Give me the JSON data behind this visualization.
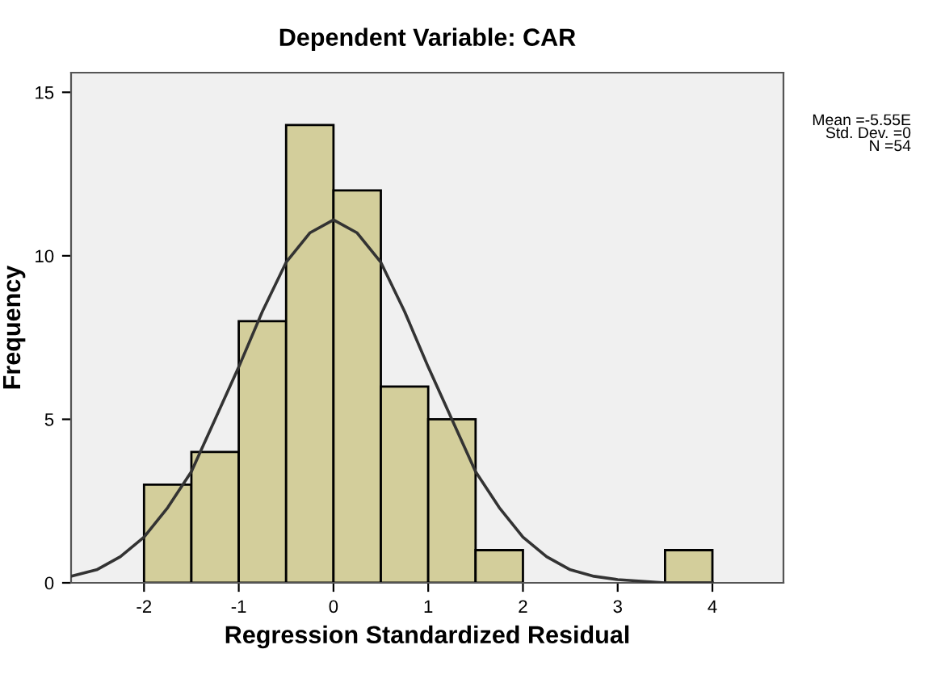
{
  "chart_data": {
    "type": "histogram",
    "title": "Dependent Variable: CAR",
    "xlabel": "Regression Standardized Residual",
    "ylabel": "Frequency",
    "xlim": [
      -2.77,
      4.75
    ],
    "ylim": [
      0,
      15.6
    ],
    "xticks": [
      -2,
      -1,
      0,
      1,
      2,
      3,
      4
    ],
    "yticks": [
      0,
      5,
      10,
      15
    ],
    "grid": false,
    "annotations": [
      "Mean =-5.55E",
      "Std. Dev. =0",
      "N =54"
    ],
    "color": "#d3ce9b",
    "bins": [
      -2,
      -1.5,
      -1,
      -0.5,
      0,
      0.5,
      1,
      1.5,
      2,
      2.5,
      3,
      3.5,
      4
    ],
    "values": [
      3,
      4,
      8,
      14,
      12,
      6,
      5,
      1,
      0,
      0,
      0,
      1
    ],
    "series": [
      {
        "type": "line",
        "color": "#333333",
        "x": [
          -2.77,
          -2.5,
          -2.25,
          -2,
          -1.75,
          -1.5,
          -1.25,
          -1,
          -0.75,
          -0.5,
          -0.25,
          0,
          0.25,
          0.5,
          0.75,
          1,
          1.25,
          1.5,
          1.75,
          2,
          2.25,
          2.5,
          2.75,
          3,
          3.25,
          3.5,
          4
        ],
        "values": [
          0.2,
          0.4,
          0.8,
          1.4,
          2.3,
          3.4,
          5.0,
          6.6,
          8.3,
          9.8,
          10.7,
          11.1,
          10.7,
          9.8,
          8.3,
          6.6,
          5.0,
          3.4,
          2.3,
          1.4,
          0.8,
          0.4,
          0.2,
          0.1,
          0.05,
          0,
          0
        ]
      }
    ]
  }
}
